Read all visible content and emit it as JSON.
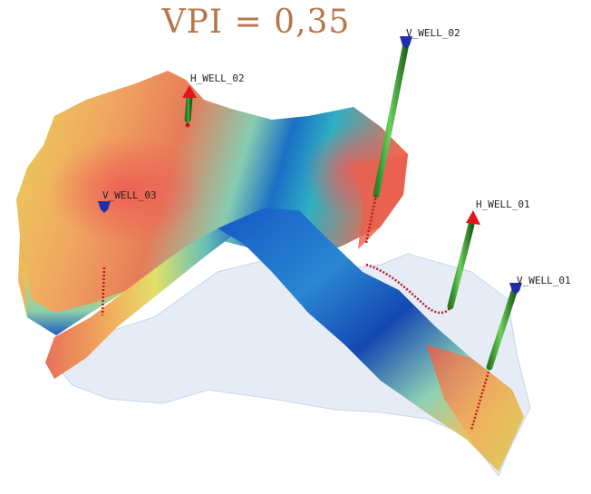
{
  "title": "VPI = 0,35",
  "wells": [
    {
      "id": "v_well_02",
      "name": "V_WELL_02",
      "type": "vertical",
      "head_color": "#1f2fa8"
    },
    {
      "id": "h_well_02",
      "name": "H_WELL_02",
      "type": "horizontal",
      "head_color": "#e0161a"
    },
    {
      "id": "v_well_03",
      "name": "V_WELL_03",
      "type": "vertical",
      "head_color": "#1f2fa8"
    },
    {
      "id": "h_well_01",
      "name": "H_WELL_01",
      "type": "horizontal",
      "head_color": "#e0161a"
    },
    {
      "id": "v_well_01",
      "name": "V_WELL_01",
      "type": "vertical",
      "head_color": "#1f2fa8"
    }
  ],
  "colors": {
    "title": "#b5774a",
    "well_stem": "#3b9a2f",
    "trajectory": "#c0161a",
    "colormap_low": "#1646b8",
    "colormap_mid": "#e9d25a",
    "colormap_high": "#e0464a"
  }
}
